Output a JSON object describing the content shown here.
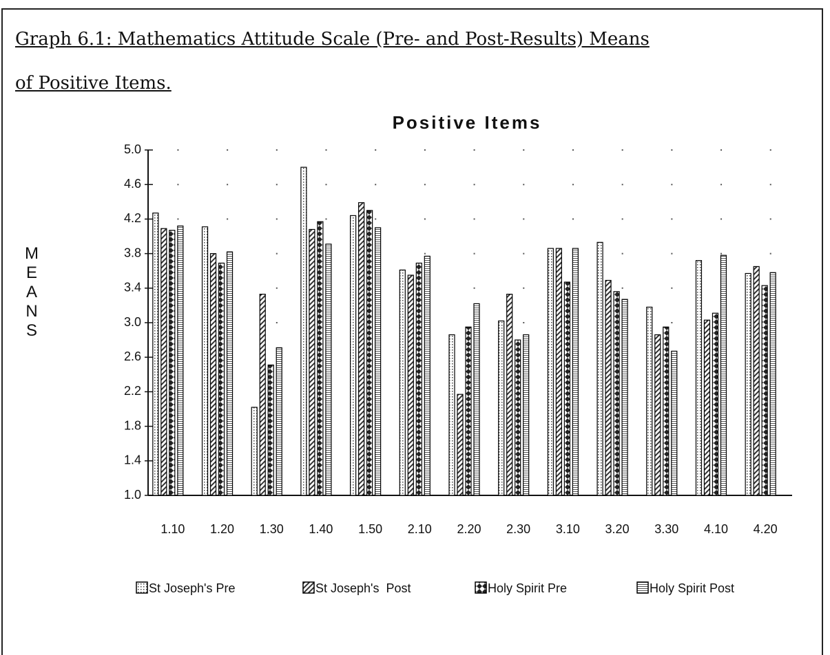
{
  "chart_data": {
    "type": "bar",
    "caption": [
      "Graph 6.1: Mathematics Attitude Scale (Pre- and Post-Results)  Means",
      "of Positive Items."
    ],
    "title": "Positive Items",
    "y_label": "MEANS",
    "categories": [
      "1.10",
      "1.20",
      "1.30",
      "1.40",
      "1.50",
      "2.10",
      "2.20",
      "2.30",
      "3.10",
      "3.20",
      "3.30",
      "4.10",
      "4.20"
    ],
    "series": [
      {
        "name": "St Joseph's Pre",
        "color": "#000000",
        "values": [
          4.27,
          4.11,
          2.02,
          4.8,
          4.24,
          3.61,
          2.86,
          3.02,
          3.86,
          3.93,
          3.18,
          3.72,
          3.57
        ]
      },
      {
        "name": "St Joseph's  Post",
        "color": "#000000",
        "values": [
          4.09,
          3.8,
          3.33,
          4.08,
          4.39,
          3.55,
          2.17,
          3.33,
          3.86,
          3.49,
          2.86,
          3.03,
          3.65
        ]
      },
      {
        "name": "Holy Spirit Pre",
        "color": "#000000",
        "values": [
          4.07,
          3.69,
          2.51,
          4.17,
          4.3,
          3.69,
          2.95,
          2.8,
          3.47,
          3.36,
          2.95,
          3.11,
          3.43
        ]
      },
      {
        "name": "Holy Spirit Post",
        "color": "#000000",
        "values": [
          4.12,
          3.82,
          2.71,
          3.91,
          4.1,
          3.77,
          3.22,
          2.86,
          3.86,
          3.27,
          2.67,
          3.78,
          3.58
        ]
      }
    ],
    "ylim": [
      1.0,
      5.0
    ],
    "yticks": [
      {
        "value": 1,
        "label": "1.0"
      },
      1.4,
      1.8,
      2.2,
      2.6,
      {
        "value": 3,
        "label": "3.0"
      },
      3.4,
      3.8,
      4.2,
      4.6,
      {
        "value": 5,
        "label": "5.0"
      }
    ],
    "grid": true
  }
}
